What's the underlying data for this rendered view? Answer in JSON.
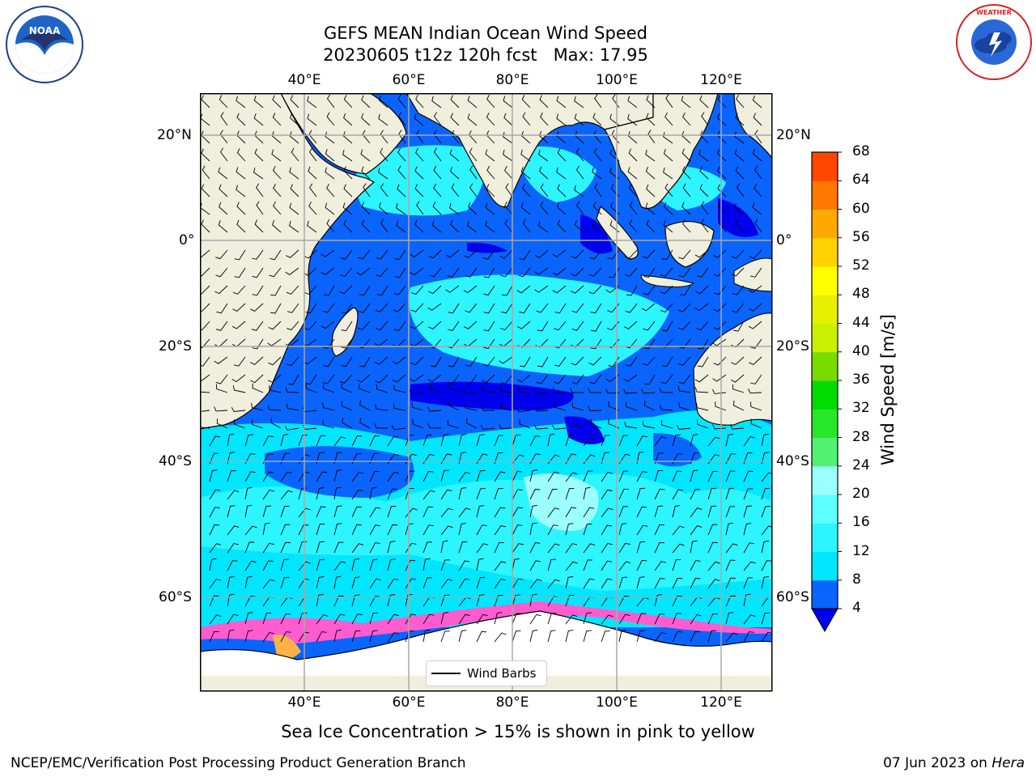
{
  "header": {
    "title": "GEFS MEAN Indian Ocean Wind Speed",
    "subtitle_left": "20230605 t12z 120h fcst",
    "subtitle_right": "Max: 17.95"
  },
  "logos": {
    "left": "NOAA",
    "right": "NATIONAL WEATHER SERVICE"
  },
  "map": {
    "lon_ticks": [
      "40°E",
      "60°E",
      "80°E",
      "100°E",
      "120°E"
    ],
    "lat_ticks": [
      "20°N",
      "0°",
      "20°S",
      "40°S",
      "60°S"
    ],
    "legend_label": "Wind Barbs"
  },
  "colorbar": {
    "label": "Wind Speed [m/s]",
    "ticks": [
      "4",
      "8",
      "12",
      "16",
      "20",
      "24",
      "28",
      "32",
      "36",
      "40",
      "44",
      "48",
      "52",
      "56",
      "60",
      "64",
      "68"
    ],
    "colors": [
      "#0a64ff",
      "#00e6ff",
      "#2cf5ff",
      "#5cffff",
      "#9cffff",
      "#50f070",
      "#28e628",
      "#00dc00",
      "#78dc00",
      "#c8f000",
      "#e6f000",
      "#ffff00",
      "#ffd200",
      "#ffaa00",
      "#ff7800",
      "#ff4600",
      "#ff0000"
    ],
    "under_color": "#0000ee"
  },
  "caption": "Sea Ice Concentration > 15% is shown in pink to yellow",
  "footer": {
    "left": "NCEP/EMC/Verification Post Processing Product Generation Branch",
    "right_prefix": "07 Jun 2023 on",
    "right_host": "Hera"
  }
}
